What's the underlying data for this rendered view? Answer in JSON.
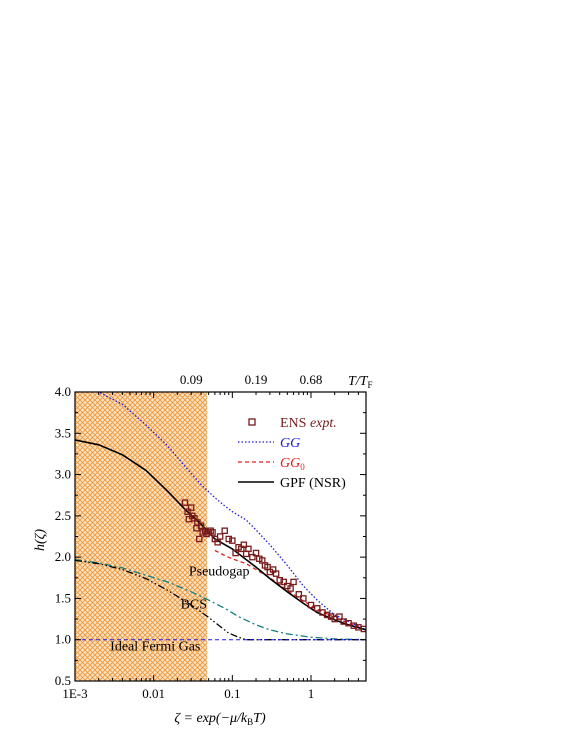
{
  "chart_data": {
    "type": "line",
    "xscale": "log",
    "xlim": [
      0.001,
      5
    ],
    "ylim": [
      0.5,
      4.0
    ],
    "x_ticks": [
      {
        "value": 0.001,
        "label": "1E-3"
      },
      {
        "value": 0.01,
        "label": "0.01"
      },
      {
        "value": 0.1,
        "label": "0.1"
      },
      {
        "value": 1,
        "label": "1"
      }
    ],
    "y_ticks": [
      {
        "value": 0.5,
        "label": "0.5"
      },
      {
        "value": 1.0,
        "label": "1.0"
      },
      {
        "value": 1.5,
        "label": "1.5"
      },
      {
        "value": 2.0,
        "label": "2.0"
      },
      {
        "value": 2.5,
        "label": "2.5"
      },
      {
        "value": 3.0,
        "label": "3.0"
      },
      {
        "value": 3.5,
        "label": "3.5"
      },
      {
        "value": 4.0,
        "label": "4.0"
      }
    ],
    "top_axis": {
      "ticks": [
        {
          "value": 0.03,
          "label": "0.09"
        },
        {
          "value": 0.2,
          "label": "0.19"
        },
        {
          "value": 1.0,
          "label": "0.68"
        }
      ],
      "label": "T/T",
      "label_sub": "F"
    },
    "xlabel": "ζ = exp(−μ/k",
    "xlabel_sub": "B",
    "xlabel_tail": "T)",
    "ylabel": "h(ζ)",
    "shaded_region": {
      "x0": 0.001,
      "x1": 0.048,
      "color": "#f5a64a"
    },
    "legend": {
      "position": "top-right",
      "entries": [
        {
          "label": "ENS ",
          "label_italic": "expt.",
          "color": "#7a1a1a",
          "style": "marker-square"
        },
        {
          "label": "GG",
          "label_italic": "",
          "color": "#1a1aee",
          "style": "dotted"
        },
        {
          "label": "GG",
          "label_italic": "",
          "sub": "0",
          "color": "#ee1a1a",
          "style": "dashed"
        },
        {
          "label": "GPF (NSR)",
          "label_italic": "",
          "color": "#000000",
          "style": "solid"
        }
      ]
    },
    "annotations": [
      {
        "text": "Pseudogap",
        "x": 0.028,
        "y": 1.78,
        "color": "#108080"
      },
      {
        "text": "BCS",
        "x": 0.022,
        "y": 1.38,
        "color": "#000000"
      },
      {
        "text": "Ideal Fermi Gas",
        "x": 0.0028,
        "y": 0.87,
        "color": "#1a1aee"
      }
    ],
    "series": [
      {
        "name": "GG",
        "style": "dotted",
        "color": "#1a1aee",
        "x": [
          0.0012,
          0.002,
          0.004,
          0.008,
          0.015,
          0.025,
          0.04,
          0.06,
          0.08,
          0.1,
          0.15,
          0.2,
          0.3,
          0.5,
          0.8,
          1.2,
          2,
          3,
          5
        ],
        "y": [
          4.1,
          4.0,
          3.85,
          3.6,
          3.35,
          3.1,
          2.88,
          2.72,
          2.62,
          2.55,
          2.45,
          2.33,
          2.15,
          1.9,
          1.65,
          1.48,
          1.3,
          1.22,
          1.12
        ]
      },
      {
        "name": "GG0",
        "style": "dashed",
        "color": "#ee1a1a",
        "x": [
          0.06,
          0.08,
          0.1,
          0.15,
          0.2,
          0.3,
          0.5,
          0.8,
          1.2,
          2,
          3,
          5
        ],
        "y": [
          2.08,
          2.02,
          1.98,
          1.92,
          1.85,
          1.75,
          1.6,
          1.47,
          1.37,
          1.27,
          1.2,
          1.12
        ]
      },
      {
        "name": "GPF (NSR)",
        "style": "solid",
        "color": "#000000",
        "x": [
          0.001,
          0.002,
          0.004,
          0.008,
          0.015,
          0.025,
          0.04,
          0.06,
          0.1,
          0.15,
          0.2,
          0.3,
          0.5,
          0.8,
          1.2,
          2,
          3,
          5
        ],
        "y": [
          3.42,
          3.36,
          3.24,
          3.05,
          2.8,
          2.58,
          2.4,
          2.22,
          2.1,
          1.97,
          1.88,
          1.74,
          1.58,
          1.44,
          1.33,
          1.24,
          1.18,
          1.12
        ]
      },
      {
        "name": "Pseudogap",
        "style": "dashdot",
        "color": "#108080",
        "x": [
          0.001,
          0.002,
          0.004,
          0.008,
          0.015,
          0.03,
          0.05,
          0.08,
          0.12,
          0.2,
          0.3,
          0.5,
          1,
          2,
          5
        ],
        "y": [
          1.97,
          1.93,
          1.87,
          1.78,
          1.7,
          1.58,
          1.48,
          1.38,
          1.28,
          1.18,
          1.12,
          1.07,
          1.03,
          1.01,
          1.0
        ]
      },
      {
        "name": "BCS",
        "style": "dashdotdot",
        "color": "#000000",
        "x": [
          0.001,
          0.002,
          0.004,
          0.008,
          0.015,
          0.03,
          0.05,
          0.07,
          0.09,
          0.12,
          0.15,
          0.18,
          0.3,
          1,
          5
        ],
        "y": [
          1.96,
          1.92,
          1.85,
          1.74,
          1.6,
          1.42,
          1.27,
          1.16,
          1.08,
          1.03,
          1.0,
          1.0,
          1.0,
          1.0,
          1.0
        ]
      },
      {
        "name": "Ideal Fermi Gas",
        "style": "dashed-thin",
        "color": "#1a1aee",
        "x": [
          0.001,
          5
        ],
        "y": [
          1.0,
          1.0
        ]
      }
    ],
    "experiment": {
      "name": "ENS expt.",
      "color": "#7a1a1a",
      "x": [
        0.025,
        0.027,
        0.028,
        0.03,
        0.031,
        0.033,
        0.035,
        0.036,
        0.038,
        0.04,
        0.042,
        0.045,
        0.047,
        0.05,
        0.053,
        0.056,
        0.06,
        0.065,
        0.07,
        0.08,
        0.09,
        0.1,
        0.11,
        0.12,
        0.13,
        0.14,
        0.15,
        0.16,
        0.18,
        0.2,
        0.22,
        0.24,
        0.26,
        0.28,
        0.3,
        0.33,
        0.36,
        0.4,
        0.45,
        0.5,
        0.55,
        0.6,
        0.7,
        0.8,
        1.0,
        1.2,
        1.4,
        1.6,
        1.8,
        2.0,
        2.3,
        2.6,
        3.0,
        3.5,
        4.0,
        4.7
      ],
      "y": [
        2.66,
        2.55,
        2.46,
        2.6,
        2.5,
        2.47,
        2.35,
        2.42,
        2.22,
        2.38,
        2.3,
        2.32,
        2.28,
        2.3,
        2.32,
        2.3,
        2.22,
        2.18,
        2.25,
        2.32,
        2.22,
        2.2,
        2.05,
        2.12,
        2.1,
        2.15,
        2.04,
        2.1,
        2.0,
        2.05,
        1.98,
        1.96,
        1.9,
        1.88,
        1.82,
        1.85,
        1.8,
        1.72,
        1.7,
        1.65,
        1.62,
        1.7,
        1.55,
        1.5,
        1.42,
        1.38,
        1.33,
        1.3,
        1.28,
        1.25,
        1.28,
        1.22,
        1.2,
        1.17,
        1.15,
        1.13
      ]
    }
  }
}
